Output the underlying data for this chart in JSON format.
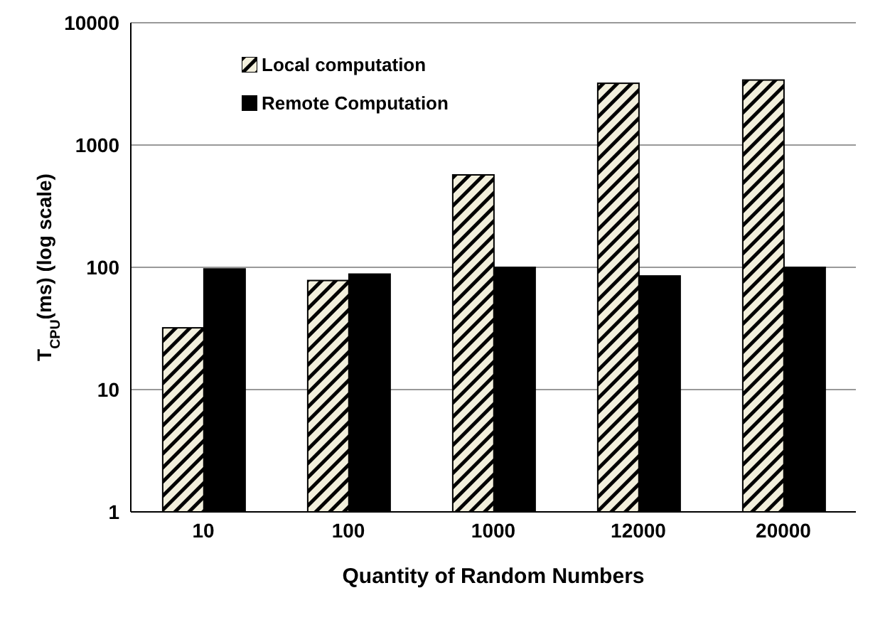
{
  "chart_data": {
    "type": "bar",
    "xlabel": "Quantity of Random Numbers",
    "ylabel": "T$_{CPU}$(ms)  (log scale)",
    "categories": [
      "10",
      "100",
      "1000",
      "12000",
      "20000"
    ],
    "series": [
      {
        "name": "Local computation",
        "color": "#f2efdc",
        "values": [
          32,
          78,
          570,
          3200,
          3400
        ]
      },
      {
        "name": "Remote Computation",
        "color": "#000000",
        "values": [
          97,
          88,
          100,
          85,
          100
        ]
      }
    ],
    "log": true,
    "ylim": [
      1,
      10000
    ],
    "yticks": [
      1,
      10,
      100,
      1000,
      10000
    ],
    "grid": "y",
    "legend": "top left"
  }
}
